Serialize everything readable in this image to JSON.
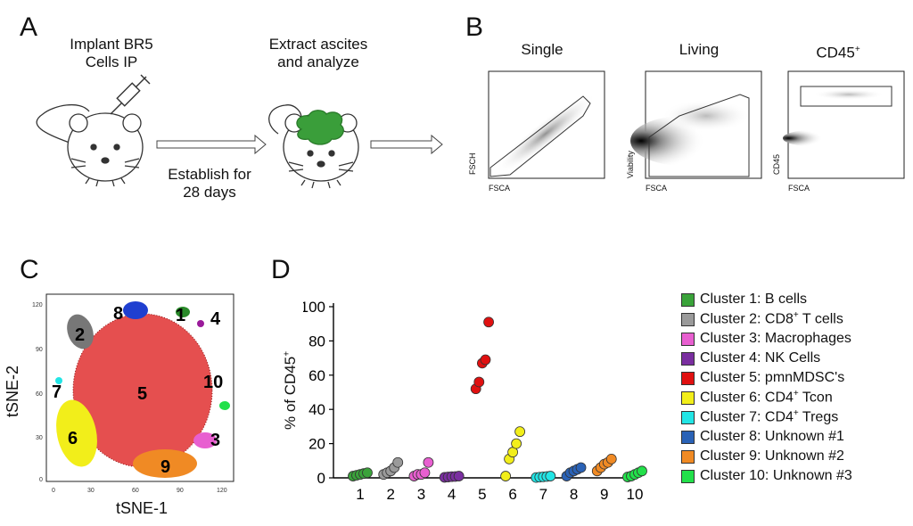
{
  "panels": {
    "a": "A",
    "b": "B",
    "c": "C",
    "d": "D"
  },
  "panel_a": {
    "step1": [
      "Implant BR5",
      "Cells IP"
    ],
    "step2": [
      "Extract ascites",
      "and analyze"
    ],
    "arrow_label": [
      "Establish for",
      "28 days"
    ]
  },
  "panel_b": {
    "plots": [
      {
        "title": "Single",
        "xlabel": "FSCA",
        "ylabel": "FSCH"
      },
      {
        "title": "Living",
        "xlabel": "FSCA",
        "ylabel": "Viability"
      },
      {
        "title": "CD45",
        "title_sup": "+",
        "xlabel": "FSCA",
        "ylabel": "CD45"
      }
    ]
  },
  "panel_c": {
    "xlabel": "tSNE-1",
    "ylabel": "tSNE-2",
    "x_ticks": [
      "0",
      "30",
      "60",
      "90",
      "120"
    ],
    "y_ticks": [
      "120",
      "90",
      "60",
      "30",
      "0"
    ],
    "cluster_labels": [
      "1",
      "2",
      "3",
      "4",
      "5",
      "6",
      "7",
      "8",
      "9",
      "10"
    ]
  },
  "chart_data": {
    "type": "scatter",
    "title": "",
    "xlabel": "",
    "ylabel": "% of CD45+",
    "ylabel_main": "% of CD45",
    "ylabel_sup": "+",
    "ylim": [
      0,
      100
    ],
    "yticks": [
      "0",
      "20",
      "40",
      "60",
      "80",
      "100"
    ],
    "categories": [
      "1",
      "2",
      "3",
      "4",
      "5",
      "6",
      "7",
      "8",
      "9",
      "10"
    ],
    "colors": [
      "#3aa33a",
      "#9a9a9a",
      "#e85fd0",
      "#7a2ea0",
      "#e01010",
      "#f2ee1a",
      "#22e5e5",
      "#2a62b6",
      "#f08a24",
      "#22e04a"
    ],
    "series": [
      {
        "name": "Cluster 1",
        "values": [
          1,
          1.5,
          2,
          2.5,
          3
        ]
      },
      {
        "name": "Cluster 2",
        "values": [
          2,
          3,
          4,
          6,
          9
        ]
      },
      {
        "name": "Cluster 3",
        "values": [
          1,
          2,
          2,
          3,
          9
        ]
      },
      {
        "name": "Cluster 4",
        "values": [
          0.3,
          0.5,
          0.7,
          0.8,
          1
        ]
      },
      {
        "name": "Cluster 5",
        "values": [
          52,
          56,
          67,
          69,
          91
        ]
      },
      {
        "name": "Cluster 6",
        "values": [
          1,
          11,
          15,
          20,
          27
        ]
      },
      {
        "name": "Cluster 7",
        "values": [
          0.2,
          0.4,
          0.6,
          0.8,
          1
        ]
      },
      {
        "name": "Cluster 8",
        "values": [
          1,
          3,
          4,
          5,
          6
        ]
      },
      {
        "name": "Cluster 9",
        "values": [
          4,
          6,
          8,
          9,
          11
        ]
      },
      {
        "name": "Cluster 10",
        "values": [
          0.5,
          1,
          2,
          3,
          4
        ]
      }
    ],
    "legend": [
      {
        "label": "Cluster 1: B cells"
      },
      {
        "label": "Cluster 2: CD8",
        "sup": "+",
        "rest": " T cells"
      },
      {
        "label": "Cluster 3: Macrophages"
      },
      {
        "label": "Cluster 4: NK Cells"
      },
      {
        "label": "Cluster 5: pmnMDSC's"
      },
      {
        "label": "Cluster 6: CD4",
        "sup": "+",
        "rest": " Tcon"
      },
      {
        "label": "Cluster 7: CD4",
        "sup": "+",
        "rest": " Tregs"
      },
      {
        "label": "Cluster 8: Unknown #1"
      },
      {
        "label": "Cluster 9: Unknown #2"
      },
      {
        "label": "Cluster 10: Unknown #3"
      }
    ]
  }
}
